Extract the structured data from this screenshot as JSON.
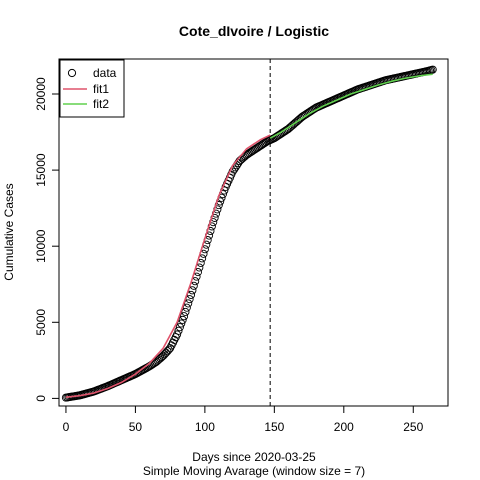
{
  "chart_data": {
    "type": "scatter",
    "title": "Cote_dIvoire / Logistic",
    "xlabel": "Days since 2020-03-25",
    "xlabel2": "Simple Moving Avarage (window size = 7)",
    "ylabel": "Cumulative Cases",
    "xlim": [
      -5,
      275
    ],
    "ylim": [
      -500,
      22300
    ],
    "x_ticks": [
      0,
      50,
      100,
      150,
      200,
      250
    ],
    "y_ticks": [
      0,
      5000,
      10000,
      15000,
      20000
    ],
    "x_tick_labels": [
      "0",
      "50",
      "100",
      "150",
      "200",
      "250"
    ],
    "y_tick_labels": [
      "0",
      "5000",
      "10000",
      "15000",
      "20000"
    ],
    "vline_x": 147,
    "grid": false,
    "legend_position": "top-left",
    "legend": [
      {
        "label": "data",
        "symbol": "circle",
        "color": "#000000"
      },
      {
        "label": "fit1",
        "symbol": "line",
        "color": "#DF536B"
      },
      {
        "label": "fit2",
        "symbol": "line",
        "color": "#61D04F"
      }
    ],
    "data_anchors": [
      [
        0,
        50
      ],
      [
        10,
        200
      ],
      [
        20,
        450
      ],
      [
        30,
        800
      ],
      [
        40,
        1200
      ],
      [
        50,
        1600
      ],
      [
        60,
        2100
      ],
      [
        65,
        2400
      ],
      [
        70,
        2800
      ],
      [
        75,
        3300
      ],
      [
        80,
        4200
      ],
      [
        85,
        5400
      ],
      [
        90,
        6800
      ],
      [
        95,
        8300
      ],
      [
        100,
        9800
      ],
      [
        105,
        11300
      ],
      [
        110,
        12700
      ],
      [
        115,
        13900
      ],
      [
        120,
        14900
      ],
      [
        125,
        15600
      ],
      [
        130,
        16000
      ],
      [
        135,
        16300
      ],
      [
        140,
        16600
      ],
      [
        145,
        16900
      ],
      [
        150,
        17100
      ],
      [
        155,
        17400
      ],
      [
        160,
        17700
      ],
      [
        170,
        18500
      ],
      [
        180,
        19100
      ],
      [
        190,
        19500
      ],
      [
        200,
        19900
      ],
      [
        210,
        20300
      ],
      [
        220,
        20600
      ],
      [
        230,
        20900
      ],
      [
        240,
        21100
      ],
      [
        250,
        21300
      ],
      [
        260,
        21500
      ],
      [
        264,
        21600
      ]
    ],
    "series": [
      {
        "name": "fit1",
        "color": "#DF536B",
        "x": [
          0,
          10,
          20,
          30,
          40,
          50,
          60,
          70,
          80,
          90,
          100,
          110,
          120,
          130,
          140,
          147
        ],
        "y": [
          80,
          180,
          350,
          650,
          1050,
          1600,
          2300,
          3300,
          5000,
          7600,
          10500,
          13300,
          15300,
          16400,
          17000,
          17300
        ]
      },
      {
        "name": "fit2",
        "color": "#61D04F",
        "x": [
          147,
          155,
          165,
          175,
          185,
          195,
          205,
          215,
          225,
          235,
          245,
          255,
          264
        ],
        "y": [
          17100,
          17500,
          18100,
          18700,
          19200,
          19600,
          20000,
          20300,
          20600,
          20850,
          21050,
          21200,
          21300
        ]
      }
    ]
  }
}
